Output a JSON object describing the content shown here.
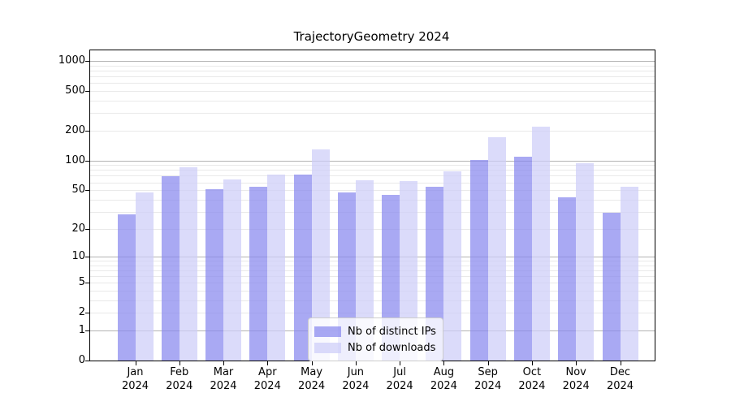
{
  "title": "TrajectoryGeometry 2024",
  "legend": {
    "items": [
      {
        "label": "Nb of distinct IPs",
        "color": "rgba(136,136,238,0.72)"
      },
      {
        "label": "Nb of downloads",
        "color": "rgba(205,205,248,0.72)"
      }
    ]
  },
  "axis": {
    "y_tick_labels": [
      "0",
      "1",
      "2",
      "5",
      "10",
      "20",
      "50",
      "100",
      "200",
      "500",
      "1000"
    ],
    "y_tick_values": [
      0,
      1,
      2,
      5,
      10,
      20,
      50,
      100,
      200,
      500,
      1000
    ],
    "grid_minor_values": [
      2,
      3,
      4,
      5,
      6,
      7,
      8,
      9,
      20,
      30,
      40,
      50,
      60,
      70,
      80,
      90,
      200,
      300,
      400,
      500,
      600,
      700,
      800,
      900
    ],
    "grid_major_values": [
      1,
      10,
      100,
      1000
    ],
    "x_year": "2024"
  },
  "chart_data": {
    "type": "bar",
    "scale": "log1p",
    "title": "TrajectoryGeometry 2024",
    "xlabel": "",
    "ylabel": "",
    "ylim": [
      0,
      1280
    ],
    "grid": true,
    "legend_position": "bottom-center",
    "categories": [
      "Jan",
      "Feb",
      "Mar",
      "Apr",
      "May",
      "Jun",
      "Jul",
      "Aug",
      "Sep",
      "Oct",
      "Nov",
      "Dec"
    ],
    "year": "2024",
    "series": [
      {
        "name": "Nb of distinct IPs",
        "color": "rgba(136,136,238,0.72)",
        "values": [
          28,
          69,
          51,
          54,
          72,
          47,
          45,
          54,
          101,
          109,
          42,
          29
        ]
      },
      {
        "name": "Nb of downloads",
        "color": "rgba(205,205,248,0.72)",
        "values": [
          47,
          85,
          64,
          72,
          129,
          63,
          62,
          78,
          171,
          219,
          94,
          54
        ]
      }
    ]
  }
}
